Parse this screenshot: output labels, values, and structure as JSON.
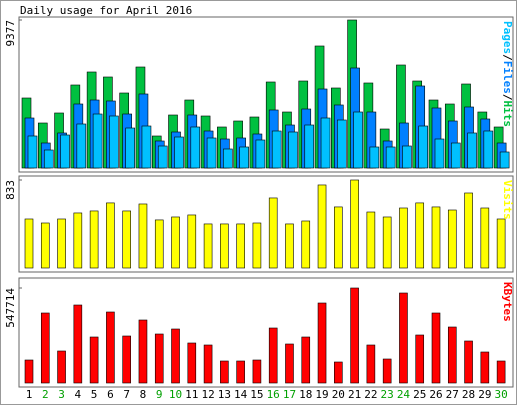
{
  "chart_data": {
    "type": "bar",
    "title": "Daily usage for April 2016",
    "categories": [
      "1",
      "2",
      "3",
      "4",
      "5",
      "6",
      "7",
      "8",
      "9",
      "10",
      "11",
      "12",
      "13",
      "14",
      "15",
      "16",
      "17",
      "18",
      "19",
      "20",
      "21",
      "22",
      "23",
      "24",
      "25",
      "26",
      "27",
      "28",
      "29",
      "30"
    ],
    "category_colors": [
      "#000000",
      "#00a000",
      "#00a000",
      "#000000",
      "#000000",
      "#000000",
      "#000000",
      "#000000",
      "#00a000",
      "#00a000",
      "#000000",
      "#000000",
      "#000000",
      "#000000",
      "#000000",
      "#00a000",
      "#00a000",
      "#000000",
      "#000000",
      "#000000",
      "#000000",
      "#000000",
      "#00a000",
      "#00a000",
      "#000000",
      "#000000",
      "#000000",
      "#000000",
      "#000000",
      "#00a000"
    ],
    "legend_separator": "/",
    "panels": [
      {
        "ylim": [
          0,
          9377
        ],
        "yticks": [
          9377
        ],
        "series": [
          {
            "name": "Hits",
            "color": "#00c040",
            "values": [
              4435,
              2851,
              3485,
              5259,
              6083,
              5766,
              4752,
              6399,
              2028,
              3358,
              4308,
              3295,
              2598,
              2978,
              3231,
              5449,
              3548,
              5512,
              7730,
              5069,
              9377,
              5386,
              2471,
              6526,
              5512,
              4308,
              4055,
              5322,
              3548,
              2598
            ]
          },
          {
            "name": "Files",
            "color": "#0080ff",
            "values": [
              3168,
              1584,
              2218,
              4055,
              4308,
              4245,
              3421,
              4689,
              1711,
              2281,
              3358,
              2344,
              1837,
              1901,
              2154,
              3675,
              2724,
              3738,
              5005,
              3992,
              6336,
              3548,
              1711,
              2851,
              5196,
              3802,
              2978,
              3865,
              3105,
              1584
            ]
          },
          {
            "name": "Pages",
            "color": "#00c0ff",
            "values": [
              2028,
              1140,
              2091,
              2788,
              3421,
              3295,
              2534,
              2661,
              1394,
              1964,
              2598,
              1901,
              1204,
              1331,
              1774,
              2344,
              2281,
              2724,
              3168,
              3041,
              3548,
              1331,
              1331,
              1394,
              2661,
              1837,
              1584,
              2218,
              2344,
              1014
            ]
          }
        ]
      },
      {
        "ylim": [
          0,
          833
        ],
        "yticks": [
          833
        ],
        "series": [
          {
            "name": "Visits",
            "color": "#ffff00",
            "values": [
              464,
              426,
              464,
              521,
              540,
              616,
              540,
              606,
              455,
              483,
              502,
              417,
              417,
              417,
              426,
              663,
              417,
              445,
              786,
              578,
              833,
              530,
              483,
              568,
              616,
              578,
              549,
              710,
              568,
              464
            ]
          }
        ]
      },
      {
        "ylim": [
          0,
          547714
        ],
        "yticks": [
          547714
        ],
        "series": [
          {
            "name": "KBytes",
            "color": "#ff0000",
            "values": [
              132600,
              403550,
              184480,
              449670,
              265190,
              409315,
              270955,
              363195,
              282485,
              311310,
              230600,
              219070,
              126830,
              126830,
              132600,
              317075,
              224835,
              265190,
              461200,
              121065,
              547714,
              219070,
              138360,
              518850,
              276720,
              403550,
              322840,
              242130,
              178715,
              126830
            ]
          }
        ]
      }
    ]
  }
}
